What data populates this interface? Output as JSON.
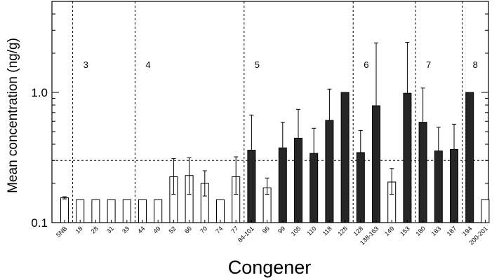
{
  "chart_data": {
    "type": "bar",
    "title": "",
    "xlabel": "Congener",
    "ylabel": "Mean concentration (ng/g)",
    "yscale": "log",
    "ylim": [
      0.1,
      5
    ],
    "ytick_values": [
      0.1,
      1.0
    ],
    "ytick_labels": [
      "0.1",
      "1.0"
    ],
    "reference_line": 0.3,
    "categories": [
      "5NB",
      "18",
      "28",
      "31",
      "33",
      "44",
      "49",
      "52",
      "66",
      "70",
      "74",
      "77",
      "84-101",
      "96",
      "99",
      "105",
      "110",
      "118",
      "128",
      "128",
      "138-163",
      "149",
      "153",
      "180",
      "183",
      "187",
      "194",
      "200-201"
    ],
    "values": [
      0.155,
      0.15,
      0.15,
      0.15,
      0.15,
      0.15,
      0.15,
      0.225,
      0.23,
      0.2,
      0.15,
      0.225,
      0.36,
      0.185,
      0.375,
      0.445,
      0.34,
      0.61,
      1.0,
      0.345,
      0.79,
      0.205,
      0.985,
      0.59,
      0.355,
      0.365,
      1.0,
      0.15
    ],
    "error_upper": [
      0.158,
      null,
      null,
      null,
      null,
      null,
      null,
      0.31,
      0.315,
      0.25,
      null,
      0.32,
      0.67,
      0.22,
      0.59,
      0.74,
      0.53,
      1.06,
      null,
      0.51,
      2.4,
      0.26,
      2.42,
      1.08,
      0.54,
      0.57,
      null,
      null
    ],
    "error_lower": [
      0.152,
      null,
      null,
      null,
      null,
      null,
      null,
      0.165,
      0.165,
      0.16,
      null,
      0.165,
      null,
      0.165,
      null,
      null,
      null,
      null,
      null,
      null,
      null,
      0.165,
      null,
      null,
      null,
      null,
      null,
      null
    ],
    "filled": [
      false,
      false,
      false,
      false,
      false,
      false,
      false,
      false,
      false,
      false,
      false,
      false,
      true,
      false,
      true,
      true,
      true,
      true,
      true,
      true,
      true,
      false,
      true,
      true,
      true,
      true,
      true,
      false
    ],
    "groups": [
      {
        "label": "3",
        "start_index": 1
      },
      {
        "label": "4",
        "start_index": 5
      },
      {
        "label": "5",
        "start_index": 12
      },
      {
        "label": "6",
        "start_index": 19
      },
      {
        "label": "7",
        "start_index": 23
      },
      {
        "label": "8",
        "start_index": 26
      }
    ],
    "colors": {
      "filled": "#262626",
      "open": "#ffffff",
      "stroke": "#000000"
    },
    "grid": false,
    "legend": "none"
  }
}
